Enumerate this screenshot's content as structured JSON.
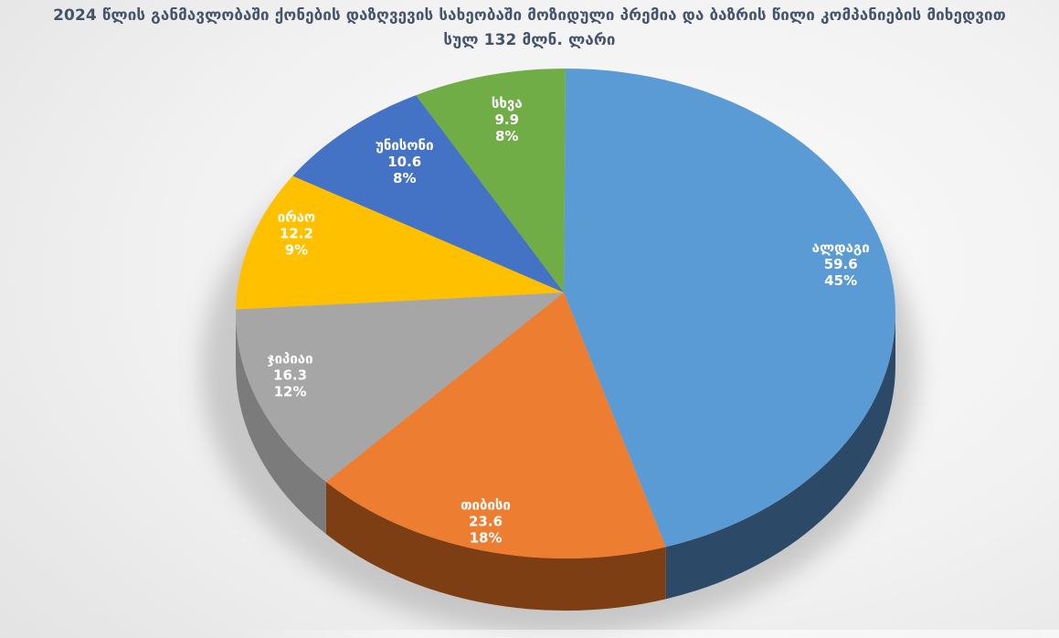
{
  "title": {
    "line1": "2024 წლის განმავლობაში ქონების დაზღვევის  სახეობაში მოზიდული პრემია და ბაზრის წილი კომპანიების მიხედვით",
    "line2": "სულ 132 მლნ. ლარი"
  },
  "chart_data": {
    "type": "pie",
    "style": "3d-pie",
    "title": "2024 წლის განმავლობაში ქონების დაზღვევის  სახეობაში მოზიდული პრემია და ბაზრის წილი კომპანიების მიხედვით",
    "subtitle": "სულ 132 მლნ. ლარი",
    "total_label": "132 მლნ. ლარი",
    "total_value": 132,
    "unit": "მლნ. ლარი",
    "start_angle_deg": 0,
    "direction": "clockwise",
    "legend": "none",
    "label_style": "inside: name, value, percent",
    "slices": [
      {
        "label": "ალდაგი",
        "value": 59.6,
        "percent": "45%",
        "color": "#5B9BD5",
        "side_color": "#2C4A68"
      },
      {
        "label": "თიბისი",
        "value": 23.6,
        "percent": "18%",
        "color": "#ED7D31",
        "side_color": "#7C3E12"
      },
      {
        "label": "ჯიპიაი",
        "value": 16.3,
        "percent": "12%",
        "color": "#A6A6A6",
        "side_color": "#7B7B7B"
      },
      {
        "label": "ირაო",
        "value": 12.2,
        "percent": "9%",
        "color": "#FFC000",
        "side_color": "#9E7700"
      },
      {
        "label": "უნისონი",
        "value": 10.6,
        "percent": "8%",
        "color": "#4472C4",
        "side_color": "#2A477A"
      },
      {
        "label": "სხვა",
        "value": 9.9,
        "percent": "8%",
        "color": "#70AD47",
        "side_color": "#46692C"
      }
    ]
  },
  "colors": {
    "title_text": "#44546A",
    "label_text": "#FFFFFF",
    "background_edge": "#E2E2E2",
    "background_center": "#FBFBFB",
    "shadow": "#8F8F8F"
  }
}
